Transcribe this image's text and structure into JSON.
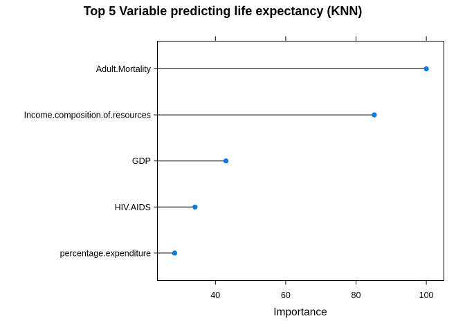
{
  "chart_data": {
    "type": "dot",
    "title": "Top 5 Variable predicting life expectancy (KNN)",
    "xlabel": "Importance",
    "ylabel": "",
    "xlim": [
      23.5,
      105
    ],
    "xticks": [
      40,
      60,
      80,
      100
    ],
    "categories": [
      "Adult.Mortality",
      "Income.composition.of.resources",
      "GDP",
      "HIV.AIDS",
      "percentage.expenditure"
    ],
    "values": [
      100,
      85.2,
      43,
      34.2,
      28.4
    ],
    "colors": {
      "point": "#0080ff",
      "segment": "#000000",
      "axis": "#000000"
    },
    "grid": false,
    "legend": "none"
  }
}
